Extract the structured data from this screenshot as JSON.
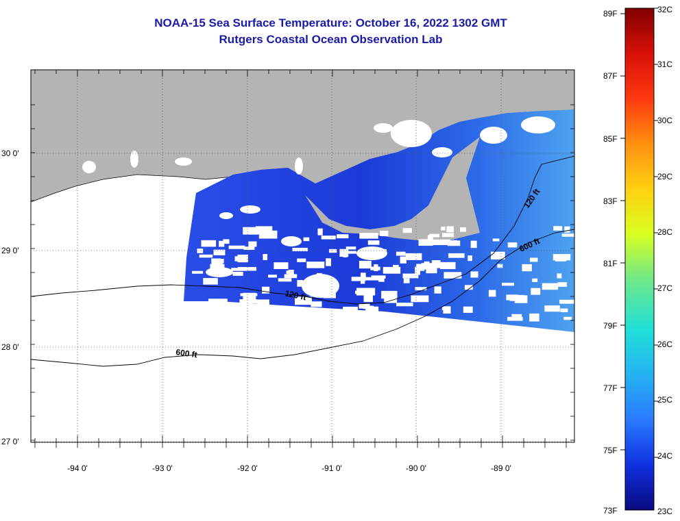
{
  "title": "NOAA-15 Sea Surface Temperature:  October 16, 2022 1302 GMT",
  "subtitle": "Rutgers Coastal Ocean Observation Lab",
  "x_ticks": [
    "-94 0'",
    "-93 0'",
    "-92 0'",
    "-91 0'",
    "-90 0'",
    "-89 0'"
  ],
  "y_ticks": [
    "30 0'",
    "29 0'",
    "28 0'",
    "27 0'"
  ],
  "contours": [
    "120 ft",
    "600 ft",
    "120 ft",
    "600 ft"
  ],
  "colorbar": {
    "fahrenheit": [
      "89F",
      "87F",
      "85F",
      "83F",
      "81F",
      "79F",
      "77F",
      "75F",
      "73F"
    ],
    "celsius": [
      "32C",
      "31C",
      "30C",
      "29C",
      "28C",
      "27C",
      "26C",
      "25C",
      "24C",
      "23C"
    ],
    "colors": [
      "#0a0a80",
      "#1030e0",
      "#2a7bff",
      "#25b8f0",
      "#20e0d8",
      "#70e888",
      "#d8ff20",
      "#ffd010",
      "#ff9010",
      "#ff3810",
      "#d81008",
      "#800000"
    ]
  },
  "colors": {
    "land": "#b4b4b4",
    "title": "#1a1aa8",
    "sst_dark": "#1428c8",
    "sst_mid": "#2a5ef0",
    "sst_light": "#4c9cf2"
  }
}
